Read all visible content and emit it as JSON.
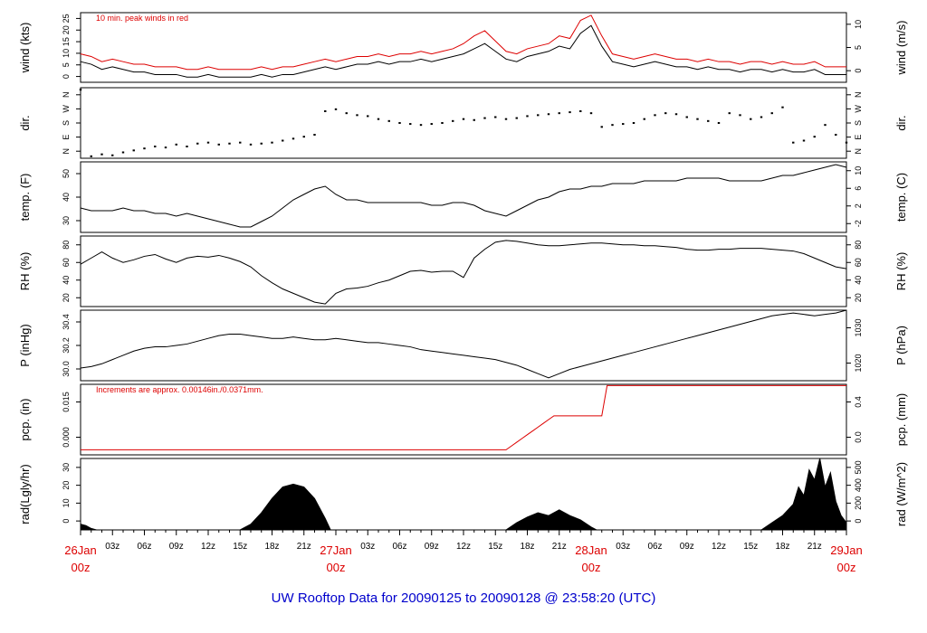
{
  "title": "UW Rooftop Data for 20090125  to  20090128 @ 23:58:20  (UTC)",
  "colors": {
    "accent": "#dd0000",
    "title": "#0000cc",
    "line": "#000000"
  },
  "x_axis": {
    "start_hours": 0,
    "end_hours": 72,
    "hour_labels": [
      "03z",
      "06z",
      "09z",
      "12z",
      "15z",
      "18z",
      "21z"
    ],
    "day_labels": [
      {
        "date": "26Jan",
        "time": "00z",
        "hours": 0
      },
      {
        "date": "27Jan",
        "time": "00z",
        "hours": 24
      },
      {
        "date": "28Jan",
        "time": "00z",
        "hours": 48
      },
      {
        "date": "29Jan",
        "time": "00z",
        "hours": 72
      }
    ]
  },
  "chart_data": [
    {
      "type": "line",
      "left_label": "wind (kts)",
      "right_label": "wind (m/s)",
      "annotation": "10 min. peak winds in red",
      "ylim": [
        0,
        27
      ],
      "left_ticks": [
        "0",
        "5",
        "10",
        "15",
        "20",
        "25"
      ],
      "right_ticks": [
        "0",
        "5",
        "10"
      ],
      "series": [
        {
          "color": "#000000",
          "x": [
            0,
            1,
            2,
            3,
            4,
            5,
            6,
            7,
            8,
            9,
            10,
            11,
            12,
            13,
            14,
            15,
            16,
            17,
            18,
            19,
            20,
            21,
            22,
            23,
            24,
            25,
            26,
            27,
            28,
            29,
            30,
            31,
            32,
            33,
            34,
            35,
            36,
            37,
            38,
            39,
            40,
            41,
            42,
            43,
            44,
            45,
            46,
            47,
            48,
            49,
            50,
            51,
            52,
            53,
            54,
            55,
            56,
            57,
            58,
            59,
            60,
            61,
            62,
            63,
            64,
            65,
            66,
            67,
            68,
            69,
            70,
            71,
            72
          ],
          "values": [
            8,
            7,
            5,
            6,
            5,
            4,
            4,
            3,
            3,
            3,
            2,
            2,
            3,
            2,
            2,
            2,
            2,
            3,
            2,
            3,
            3,
            4,
            5,
            6,
            5,
            6,
            7,
            7,
            8,
            7,
            8,
            8,
            9,
            8,
            9,
            10,
            11,
            13,
            15,
            12,
            9,
            8,
            10,
            11,
            12,
            14,
            13,
            19,
            22,
            14,
            8,
            7,
            6,
            7,
            8,
            7,
            6,
            6,
            5,
            6,
            5,
            5,
            4,
            5,
            5,
            4,
            5,
            4,
            4,
            5,
            3,
            3,
            3
          ]
        },
        {
          "color": "#dd0000",
          "x": [
            0,
            1,
            2,
            3,
            4,
            5,
            6,
            7,
            8,
            9,
            10,
            11,
            12,
            13,
            14,
            15,
            16,
            17,
            18,
            19,
            20,
            21,
            22,
            23,
            24,
            25,
            26,
            27,
            28,
            29,
            30,
            31,
            32,
            33,
            34,
            35,
            36,
            37,
            38,
            39,
            40,
            41,
            42,
            43,
            44,
            45,
            46,
            47,
            48,
            49,
            50,
            51,
            52,
            53,
            54,
            55,
            56,
            57,
            58,
            59,
            60,
            61,
            62,
            63,
            64,
            65,
            66,
            67,
            68,
            69,
            70,
            71,
            72
          ],
          "values": [
            11,
            10,
            8,
            9,
            8,
            7,
            7,
            6,
            6,
            6,
            5,
            5,
            6,
            5,
            5,
            5,
            5,
            6,
            5,
            6,
            6,
            7,
            8,
            9,
            8,
            9,
            10,
            10,
            11,
            10,
            11,
            11,
            12,
            11,
            12,
            13,
            15,
            18,
            20,
            16,
            12,
            11,
            13,
            14,
            15,
            18,
            17,
            24,
            26,
            18,
            11,
            10,
            9,
            10,
            11,
            10,
            9,
            9,
            8,
            9,
            8,
            8,
            7,
            8,
            8,
            7,
            8,
            7,
            7,
            8,
            6,
            6,
            6
          ]
        }
      ]
    },
    {
      "type": "scatter",
      "left_label": "dir.",
      "right_label": "dir.",
      "ylim": [
        0,
        360
      ],
      "left_ticks": [
        "N",
        "E",
        "S",
        "W",
        "N"
      ],
      "right_ticks": [
        "N",
        "E",
        "S",
        "W",
        "N"
      ],
      "series": [
        {
          "color": "#000000",
          "x": [
            0,
            1,
            2,
            3,
            4,
            5,
            6,
            7,
            8,
            9,
            10,
            11,
            12,
            13,
            14,
            15,
            16,
            17,
            18,
            19,
            20,
            21,
            22,
            23,
            24,
            25,
            26,
            27,
            28,
            29,
            30,
            31,
            32,
            33,
            34,
            35,
            36,
            37,
            38,
            39,
            40,
            41,
            42,
            43,
            44,
            45,
            46,
            47,
            48,
            49,
            50,
            51,
            52,
            53,
            54,
            55,
            56,
            57,
            58,
            59,
            60,
            61,
            62,
            63,
            64,
            65,
            66,
            67,
            68,
            69,
            70,
            71,
            72
          ],
          "values": [
            350,
            10,
            20,
            15,
            30,
            40,
            50,
            60,
            55,
            70,
            60,
            75,
            80,
            70,
            75,
            80,
            70,
            75,
            80,
            90,
            100,
            110,
            120,
            240,
            250,
            230,
            220,
            215,
            200,
            190,
            180,
            175,
            170,
            175,
            180,
            190,
            200,
            195,
            205,
            210,
            200,
            205,
            215,
            220,
            225,
            230,
            235,
            240,
            230,
            160,
            170,
            175,
            180,
            200,
            220,
            230,
            225,
            210,
            200,
            190,
            180,
            230,
            220,
            200,
            210,
            230,
            260,
            80,
            90,
            110,
            170,
            120,
            80
          ]
        }
      ]
    },
    {
      "type": "line",
      "left_label": "temp. (F)",
      "right_label": "temp. (C)",
      "ylim": [
        25,
        51
      ],
      "left_ticks": [
        "30",
        "40",
        "50"
      ],
      "right_ticks": [
        "-2",
        "2",
        "6",
        "10"
      ],
      "series": [
        {
          "color": "#000000",
          "x": [
            0,
            1,
            2,
            3,
            4,
            5,
            6,
            7,
            8,
            9,
            10,
            11,
            12,
            13,
            14,
            15,
            16,
            17,
            18,
            19,
            20,
            21,
            22,
            23,
            24,
            25,
            26,
            27,
            28,
            29,
            30,
            31,
            32,
            33,
            34,
            35,
            36,
            37,
            38,
            39,
            40,
            41,
            42,
            43,
            44,
            45,
            46,
            47,
            48,
            49,
            50,
            51,
            52,
            53,
            54,
            55,
            56,
            57,
            58,
            59,
            60,
            61,
            62,
            63,
            64,
            65,
            66,
            67,
            68,
            69,
            70,
            71,
            72
          ],
          "values": [
            34,
            33,
            33,
            33,
            34,
            33,
            33,
            32,
            32,
            31,
            32,
            31,
            30,
            29,
            28,
            27,
            27,
            29,
            31,
            34,
            37,
            39,
            41,
            42,
            39,
            37,
            37,
            36,
            36,
            36,
            36,
            36,
            36,
            35,
            35,
            36,
            36,
            35,
            33,
            32,
            31,
            33,
            35,
            37,
            38,
            40,
            41,
            41,
            42,
            42,
            43,
            43,
            43,
            44,
            44,
            44,
            44,
            45,
            45,
            45,
            45,
            44,
            44,
            44,
            44,
            45,
            46,
            46,
            47,
            48,
            49,
            50,
            49
          ]
        }
      ]
    },
    {
      "type": "line",
      "left_label": "RH (%)",
      "right_label": "RH (%)",
      "ylim": [
        15,
        95
      ],
      "left_ticks": [
        "20",
        "40",
        "60",
        "80"
      ],
      "right_ticks": [
        "20",
        "40",
        "60",
        "80"
      ],
      "series": [
        {
          "color": "#000000",
          "x": [
            0,
            1,
            2,
            3,
            4,
            5,
            6,
            7,
            8,
            9,
            10,
            11,
            12,
            13,
            14,
            15,
            16,
            17,
            18,
            19,
            20,
            21,
            22,
            23,
            24,
            25,
            26,
            27,
            28,
            29,
            30,
            31,
            32,
            33,
            34,
            35,
            36,
            37,
            38,
            39,
            40,
            41,
            42,
            43,
            44,
            45,
            46,
            47,
            48,
            49,
            50,
            51,
            52,
            53,
            54,
            55,
            56,
            57,
            58,
            59,
            60,
            61,
            62,
            63,
            64,
            65,
            66,
            67,
            68,
            69,
            70,
            71,
            72
          ],
          "values": [
            63,
            70,
            77,
            70,
            65,
            68,
            72,
            74,
            69,
            65,
            70,
            72,
            71,
            73,
            70,
            66,
            60,
            50,
            42,
            35,
            30,
            25,
            20,
            18,
            30,
            35,
            36,
            38,
            42,
            45,
            50,
            55,
            56,
            54,
            55,
            55,
            48,
            70,
            80,
            88,
            90,
            89,
            87,
            85,
            84,
            84,
            85,
            86,
            87,
            87,
            86,
            85,
            85,
            84,
            84,
            83,
            82,
            80,
            79,
            79,
            80,
            80,
            81,
            81,
            81,
            80,
            79,
            78,
            75,
            70,
            65,
            60,
            58
          ]
        }
      ]
    },
    {
      "type": "line",
      "left_label": "P (inHg)",
      "right_label": "P (hPa)",
      "ylim": [
        29.98,
        30.48
      ],
      "left_ticks": [
        "30.0",
        "30.2",
        "30.4"
      ],
      "right_ticks": [
        "1020",
        "1030"
      ],
      "series": [
        {
          "color": "#000000",
          "x": [
            0,
            1,
            2,
            3,
            4,
            5,
            6,
            7,
            8,
            9,
            10,
            11,
            12,
            13,
            14,
            15,
            16,
            17,
            18,
            19,
            20,
            21,
            22,
            23,
            24,
            25,
            26,
            27,
            28,
            29,
            30,
            31,
            32,
            33,
            34,
            35,
            36,
            37,
            38,
            39,
            40,
            41,
            42,
            43,
            44,
            45,
            46,
            47,
            48,
            49,
            50,
            51,
            52,
            53,
            54,
            55,
            56,
            57,
            58,
            59,
            60,
            61,
            62,
            63,
            64,
            65,
            66,
            67,
            68,
            69,
            70,
            71,
            72
          ],
          "values": [
            30.07,
            30.08,
            30.1,
            30.13,
            30.16,
            30.19,
            30.21,
            30.22,
            30.22,
            30.23,
            30.24,
            30.26,
            30.28,
            30.3,
            30.31,
            30.31,
            30.3,
            30.29,
            30.28,
            30.28,
            30.29,
            30.28,
            30.27,
            30.27,
            30.28,
            30.27,
            30.26,
            30.25,
            30.25,
            30.24,
            30.23,
            30.22,
            30.2,
            30.19,
            30.18,
            30.17,
            30.16,
            30.15,
            30.14,
            30.13,
            30.11,
            30.09,
            30.06,
            30.03,
            30.0,
            30.03,
            30.06,
            30.08,
            30.1,
            30.12,
            30.14,
            30.16,
            30.18,
            30.2,
            30.22,
            30.24,
            30.26,
            30.28,
            30.3,
            30.32,
            30.34,
            30.36,
            30.38,
            30.4,
            30.42,
            30.44,
            30.45,
            30.46,
            30.45,
            30.44,
            30.45,
            30.46,
            30.48
          ]
        }
      ]
    },
    {
      "type": "line",
      "left_label": "pcp. (in)",
      "right_label": "pcp. (mm)",
      "annotation": "Increments are approx. 0.00146in./0.0371mm.",
      "ylim": [
        -0.002,
        0.026
      ],
      "left_ticks": [
        "0.000",
        "0.015"
      ],
      "right_ticks": [
        "0.0",
        "0.4"
      ],
      "series": [
        {
          "color": "#dd0000",
          "x": [
            0,
            40,
            40.5,
            41,
            41.5,
            42,
            42.5,
            43,
            43.5,
            44,
            44.5,
            49,
            49.5,
            72
          ],
          "values": [
            0,
            0,
            0.0015,
            0.003,
            0.0045,
            0.006,
            0.0075,
            0.009,
            0.0105,
            0.012,
            0.0135,
            0.0135,
            0.0255,
            0.0255
          ]
        }
      ]
    },
    {
      "type": "area",
      "left_label": "rad(Lgly/hr)",
      "right_label": "rad (W/m^2)",
      "ylim": [
        0,
        50
      ],
      "left_ticks": [
        "0",
        "10",
        "20",
        "30"
      ],
      "right_ticks": [
        "0",
        "200",
        "400",
        "500"
      ],
      "series": [
        {
          "color": "#000000",
          "x": [
            0,
            0.5,
            1,
            1.5,
            15,
            16,
            17,
            18,
            19,
            20,
            21,
            22,
            23,
            23.5,
            24,
            40,
            41,
            42,
            43,
            44,
            45,
            46,
            47,
            48,
            48.5,
            64,
            65,
            66,
            67,
            67.5,
            68,
            68.5,
            69,
            69.5,
            70,
            70.5,
            71,
            71.5,
            72
          ],
          "values": [
            4,
            3,
            1,
            0,
            0,
            4,
            12,
            22,
            30,
            32,
            30,
            22,
            8,
            0,
            0,
            0,
            5,
            9,
            12,
            10,
            14,
            10,
            7,
            2,
            0,
            0,
            5,
            10,
            18,
            30,
            24,
            42,
            35,
            50,
            30,
            40,
            20,
            10,
            5
          ]
        }
      ]
    }
  ]
}
